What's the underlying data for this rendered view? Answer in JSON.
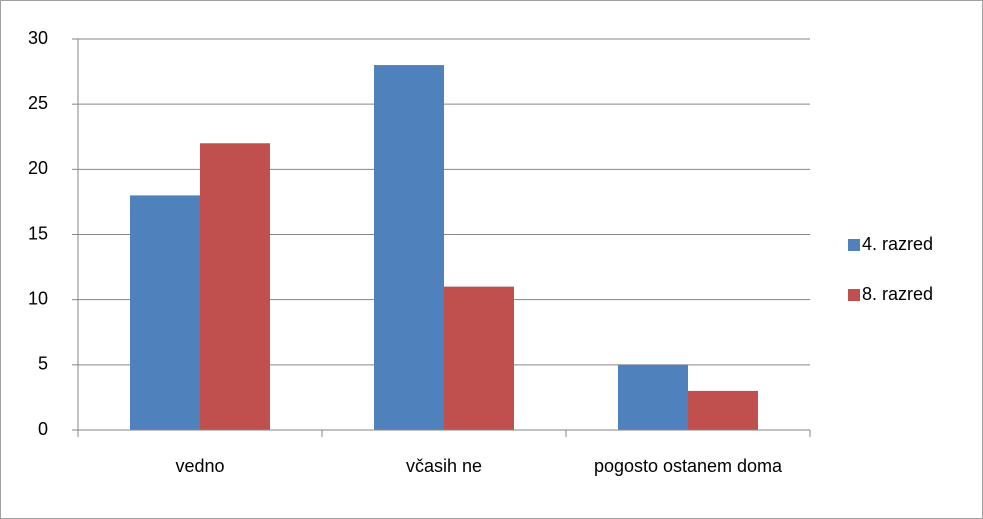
{
  "chart_data": {
    "type": "bar",
    "categories": [
      "vedno",
      "včasih ne",
      "pogosto ostanem doma"
    ],
    "series": [
      {
        "name": "4. razred",
        "color": "#4f81bd",
        "values": [
          18,
          28,
          5
        ]
      },
      {
        "name": "8. razred",
        "color": "#c0504d",
        "values": [
          22,
          11,
          3
        ]
      }
    ],
    "ylim": [
      0,
      30
    ],
    "yticks": [
      0,
      5,
      10,
      15,
      20,
      25,
      30
    ],
    "grid": true,
    "legend": "right"
  }
}
